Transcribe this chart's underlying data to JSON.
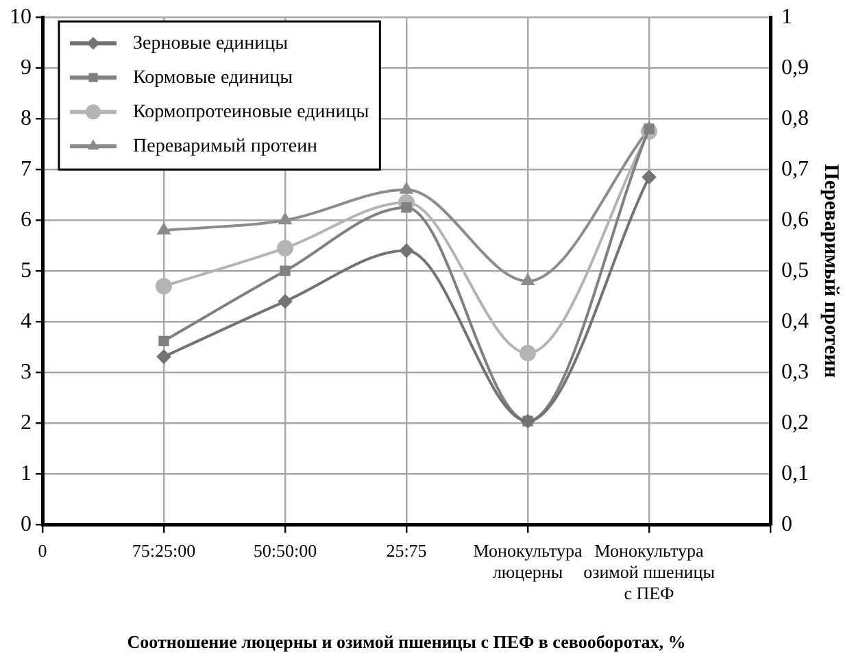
{
  "chart_data": {
    "type": "line",
    "xlabel": "Соотношение люцерны и озимой пшеницы с ПЕФ в севооборотах, %",
    "y2label": "Переваримый протеин",
    "categories": [
      "0",
      "75:25:00",
      "50:50:00",
      "25:75",
      "Монокультура люцерны",
      "Монокультура озимой пшеницы с ПЕФ",
      null
    ],
    "series": [
      {
        "name": "Зерновые единицы",
        "color": "#737373",
        "marker": "diamond",
        "values": [
          null,
          3.31,
          4.4,
          5.4,
          2.04,
          6.85,
          null
        ]
      },
      {
        "name": "Кормовые единицы",
        "color": "#808080",
        "marker": "square",
        "values": [
          null,
          3.62,
          5.0,
          6.25,
          2.04,
          7.8,
          null
        ]
      },
      {
        "name": "Кормопротеиновые единицы",
        "color": "#b4b4b4",
        "marker": "circle",
        "values": [
          null,
          4.7,
          5.45,
          6.35,
          3.38,
          7.75,
          null
        ]
      },
      {
        "name": "Переваримый протеин",
        "color": "#8c8c8c",
        "marker": "triangle",
        "axis": "y2",
        "values": [
          null,
          0.58,
          0.6,
          0.66,
          0.48,
          0.78,
          null
        ]
      }
    ],
    "ylim": [
      0,
      10
    ],
    "yticks": [
      0,
      1,
      2,
      3,
      4,
      5,
      6,
      7,
      8,
      9,
      10
    ],
    "y2lim": [
      0,
      1
    ],
    "y2ticks": [
      0,
      {
        "value": 0.1,
        "label": "0,1"
      },
      {
        "value": 0.2,
        "label": "0,2"
      },
      {
        "value": 0.3,
        "label": "0,3"
      },
      {
        "value": 0.4,
        "label": "0,4"
      },
      {
        "value": 0.5,
        "label": "0,5"
      },
      {
        "value": 0.6,
        "label": "0,6"
      },
      {
        "value": 0.7,
        "label": "0,7"
      },
      {
        "value": 0.8,
        "label": "0,8"
      },
      {
        "value": 0.9,
        "label": "0,9"
      },
      1
    ],
    "grid": true,
    "legend": "top left",
    "line_style": "solid"
  }
}
